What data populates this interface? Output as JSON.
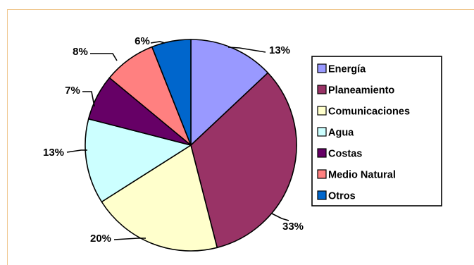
{
  "chart_data": {
    "type": "pie",
    "legend_position": "right",
    "start": "top",
    "direction": "clockwise",
    "slices": [
      {
        "label": "Energía",
        "value": 13,
        "value_label": "13%",
        "color": "#9999ff"
      },
      {
        "label": "Planeamiento",
        "value": 33,
        "value_label": "33%",
        "color": "#993366"
      },
      {
        "label": "Comunicaciones",
        "value": 20,
        "value_label": "20%",
        "color": "#ffffcc"
      },
      {
        "label": "Agua",
        "value": 13,
        "value_label": "13%",
        "color": "#ccffff"
      },
      {
        "label": "Costas",
        "value": 7,
        "value_label": "7%",
        "color": "#660066"
      },
      {
        "label": "Medio Natural",
        "value": 8,
        "value_label": "8%",
        "color": "#ff8080"
      },
      {
        "label": "Otros",
        "value": 6,
        "value_label": "6%",
        "color": "#0066cc"
      }
    ]
  }
}
